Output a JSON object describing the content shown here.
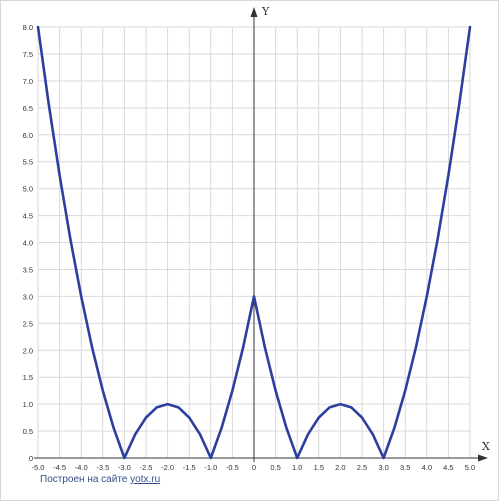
{
  "chart_data": {
    "type": "line",
    "title": "",
    "xlabel": "X",
    "ylabel": "Y",
    "xlim": [
      -5.0,
      5.0
    ],
    "ylim": [
      0,
      8.0
    ],
    "x_ticks": [
      "-5.0",
      "-4.5",
      "-4.0",
      "-3.5",
      "-3.0",
      "-2.5",
      "-2.0",
      "-1.5",
      "-1.0",
      "-0.5",
      "0",
      "0.5",
      "1.0",
      "1.5",
      "2.0",
      "2.5",
      "3.0",
      "3.5",
      "4.0",
      "4.5",
      "5.0"
    ],
    "y_ticks": [
      "0",
      "0.5",
      "1.0",
      "1.5",
      "2.0",
      "2.5",
      "3.0",
      "3.5",
      "4.0",
      "4.5",
      "5.0",
      "5.5",
      "6.0",
      "6.5",
      "7.0",
      "7.5",
      "8.0"
    ],
    "grid": true,
    "series": [
      {
        "color": "#2c3f9e",
        "x": [
          -5.0,
          -4.75,
          -4.5,
          -4.25,
          -4.0,
          -3.75,
          -3.5,
          -3.25,
          -3.0,
          -2.75,
          -2.5,
          -2.25,
          -2.0,
          -1.75,
          -1.5,
          -1.25,
          -1.0,
          -0.75,
          -0.5,
          -0.25,
          0.0,
          0.25,
          0.5,
          0.75,
          1.0,
          1.25,
          1.5,
          1.75,
          2.0,
          2.25,
          2.5,
          2.75,
          3.0,
          3.25,
          3.5,
          3.75,
          4.0,
          4.25,
          4.5,
          4.75,
          5.0
        ],
        "y": [
          8.0,
          6.56,
          5.25,
          4.06,
          3.0,
          2.06,
          1.25,
          0.56,
          0.0,
          0.44,
          0.75,
          0.94,
          1.0,
          0.94,
          0.75,
          0.44,
          0.0,
          0.56,
          1.25,
          2.06,
          3.0,
          2.06,
          1.25,
          0.56,
          0.0,
          0.44,
          0.75,
          0.94,
          1.0,
          0.94,
          0.75,
          0.44,
          0.0,
          0.56,
          1.25,
          2.06,
          3.0,
          4.06,
          5.25,
          6.56,
          8.0
        ]
      }
    ]
  },
  "footer": {
    "credit_prefix": "Построен на сайте",
    "credit_link": "yotx.ru"
  }
}
